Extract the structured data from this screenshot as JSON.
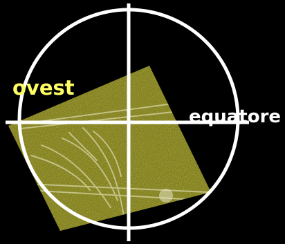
{
  "labels": {
    "west": "ovest",
    "equator": "equatore"
  },
  "colors": {
    "background": "#000000",
    "circle": "#ffffff",
    "west_label": "#ffff66",
    "equator_label": "#ffffff",
    "field": "#7d7b1f"
  }
}
